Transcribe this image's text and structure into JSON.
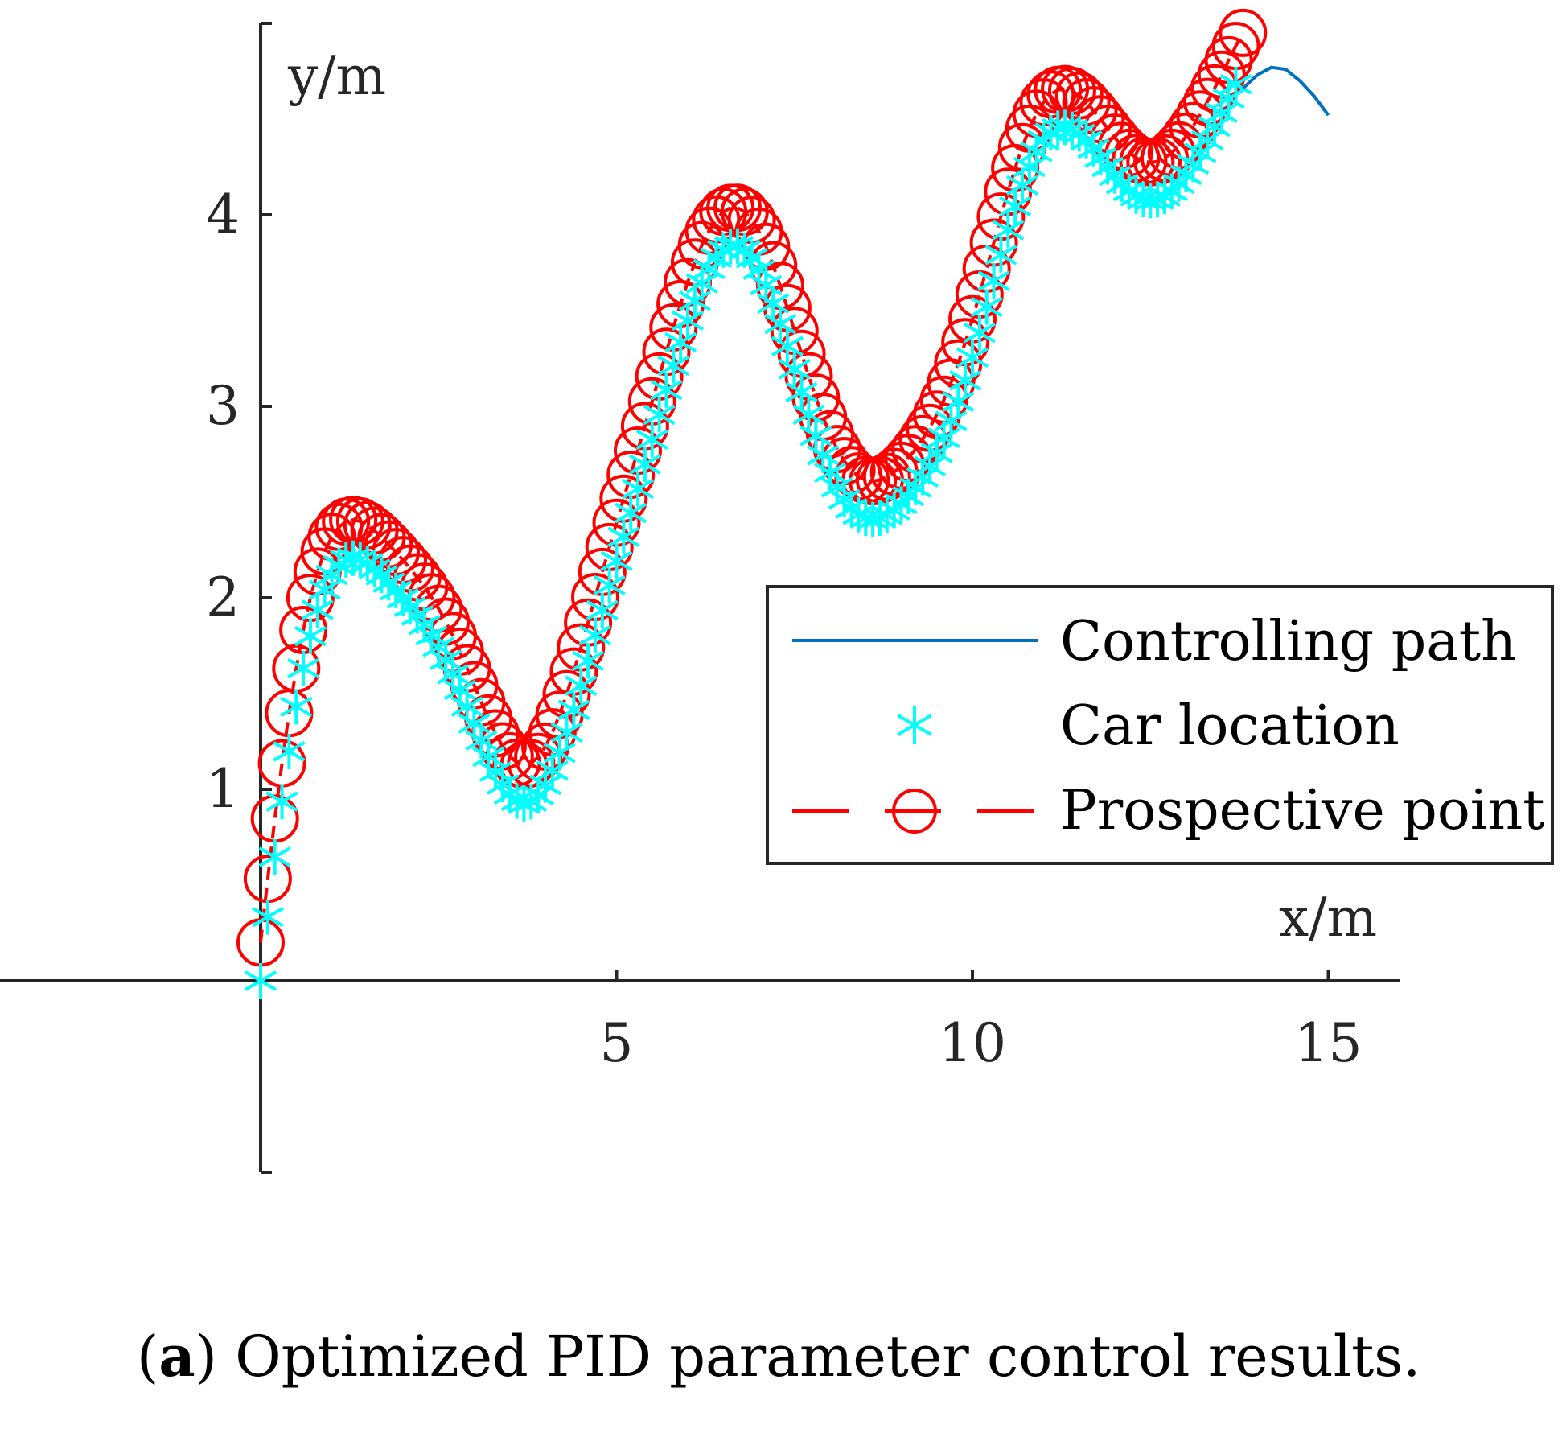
{
  "chart_data": {
    "type": "line",
    "caption_label": "a",
    "caption_text": "Optimized PID parameter control results.",
    "xlabel": "x/m",
    "ylabel": "y/m",
    "xlim": [
      -4,
      16
    ],
    "ylim": [
      -1,
      5
    ],
    "x_ticks": [
      5,
      10,
      15
    ],
    "y_ticks": [
      1,
      2,
      3,
      4
    ],
    "x_tick_labels": [
      "5",
      "10",
      "15"
    ],
    "y_tick_labels": [
      "1",
      "2",
      "3",
      "4"
    ],
    "legend_position": "center-right",
    "series": [
      {
        "name": "Controlling path",
        "style": "solid-line",
        "color": "#0072BD",
        "x": [
          13.8,
          14.0,
          14.2,
          14.4,
          14.6,
          14.8,
          15.0
        ],
        "y": [
          4.66,
          4.73,
          4.77,
          4.76,
          4.7,
          4.62,
          4.52
        ]
      },
      {
        "name": "Car location",
        "style": "asterisk-markers",
        "color": "#00FFFF",
        "x": [
          0.0,
          0.1,
          0.2,
          0.3,
          0.4,
          0.5,
          0.6,
          0.7,
          0.8,
          0.9,
          1.0,
          1.1,
          1.2,
          1.3,
          1.4,
          1.5,
          1.6,
          1.7,
          1.8,
          1.9,
          2.0,
          2.1,
          2.2,
          2.3,
          2.4,
          2.5,
          2.6,
          2.7,
          2.8,
          2.9,
          3.0,
          3.1,
          3.2,
          3.3,
          3.4,
          3.5,
          3.6,
          3.7,
          3.8,
          3.9,
          4.0,
          4.1,
          4.2,
          4.3,
          4.4,
          4.5,
          4.6,
          4.7,
          4.8,
          4.9,
          5.0,
          5.1,
          5.2,
          5.3,
          5.4,
          5.5,
          5.6,
          5.7,
          5.8,
          5.9,
          6.0,
          6.1,
          6.2,
          6.3,
          6.4,
          6.5,
          6.6,
          6.7,
          6.8,
          6.9,
          7.0,
          7.1,
          7.2,
          7.3,
          7.4,
          7.5,
          7.6,
          7.7,
          7.8,
          7.9,
          8.0,
          8.1,
          8.2,
          8.3,
          8.4,
          8.5,
          8.6,
          8.7,
          8.8,
          8.9,
          9.0,
          9.1,
          9.2,
          9.3,
          9.4,
          9.5,
          9.6,
          9.7,
          9.8,
          9.9,
          10.0,
          10.1,
          10.2,
          10.3,
          10.4,
          10.5,
          10.6,
          10.7,
          10.8,
          10.9,
          11.0,
          11.1,
          11.2,
          11.3,
          11.4,
          11.5,
          11.6,
          11.7,
          11.8,
          11.9,
          12.0,
          12.1,
          12.2,
          12.3,
          12.4,
          12.5,
          12.6,
          12.7,
          12.8,
          12.9,
          13.0,
          13.1,
          13.2,
          13.3,
          13.4,
          13.5,
          13.6,
          13.7
        ],
        "y": [
          0.0,
          0.333,
          0.647,
          0.936,
          1.198,
          1.431,
          1.632,
          1.8,
          1.937,
          2.042,
          2.119,
          2.17,
          2.198,
          2.207,
          2.199,
          2.18,
          2.151,
          2.117,
          2.079,
          2.039,
          1.997,
          1.953,
          1.907,
          1.858,
          1.803,
          1.743,
          1.676,
          1.601,
          1.519,
          1.432,
          1.344,
          1.255,
          1.17,
          1.092,
          1.025,
          0.973,
          0.939,
          0.925,
          0.936,
          0.969,
          1.023,
          1.098,
          1.19,
          1.297,
          1.415,
          1.541,
          1.671,
          1.804,
          1.935,
          2.065,
          2.192,
          2.318,
          2.443,
          2.569,
          2.697,
          2.826,
          2.956,
          3.085,
          3.212,
          3.334,
          3.448,
          3.551,
          3.642,
          3.717,
          3.776,
          3.816,
          3.836,
          3.837,
          3.816,
          3.774,
          3.713,
          3.633,
          3.537,
          3.43,
          3.314,
          3.194,
          3.074,
          2.957,
          2.846,
          2.745,
          2.654,
          2.577,
          2.514,
          2.467,
          2.434,
          2.415,
          2.409,
          2.416,
          2.432,
          2.457,
          2.49,
          2.53,
          2.576,
          2.629,
          2.688,
          2.757,
          2.835,
          2.924,
          3.024,
          3.135,
          3.255,
          3.384,
          3.519,
          3.655,
          3.791,
          3.921,
          4.044,
          4.154,
          4.25,
          4.328,
          4.388,
          4.429,
          4.452,
          4.457,
          4.447,
          4.423,
          4.388,
          4.346,
          4.299,
          4.25,
          4.203,
          4.16,
          4.124,
          4.097,
          4.08,
          4.074,
          4.079,
          4.096,
          4.124,
          4.162,
          4.209,
          4.263,
          4.324,
          4.39,
          4.46,
          4.532,
          4.607,
          4.682
        ]
      },
      {
        "name": "Prospective point",
        "style": "dashed-line-circle-markers",
        "color": "#FF0000",
        "x": [
          0.0,
          0.1,
          0.2,
          0.3,
          0.4,
          0.5,
          0.6,
          0.7,
          0.8,
          0.9,
          1.0,
          1.1,
          1.2,
          1.3,
          1.4,
          1.5,
          1.6,
          1.7,
          1.8,
          1.9,
          2.0,
          2.1,
          2.2,
          2.3,
          2.4,
          2.5,
          2.6,
          2.7,
          2.8,
          2.9,
          3.0,
          3.1,
          3.2,
          3.3,
          3.4,
          3.5,
          3.6,
          3.7,
          3.8,
          3.9,
          4.0,
          4.1,
          4.2,
          4.3,
          4.4,
          4.5,
          4.6,
          4.7,
          4.8,
          4.9,
          5.0,
          5.1,
          5.2,
          5.3,
          5.4,
          5.5,
          5.6,
          5.7,
          5.8,
          5.9,
          6.0,
          6.1,
          6.2,
          6.3,
          6.4,
          6.5,
          6.6,
          6.7,
          6.8,
          6.9,
          7.0,
          7.1,
          7.2,
          7.3,
          7.4,
          7.5,
          7.6,
          7.7,
          7.8,
          7.9,
          8.0,
          8.1,
          8.2,
          8.3,
          8.4,
          8.5,
          8.6,
          8.7,
          8.8,
          8.9,
          9.0,
          9.1,
          9.2,
          9.3,
          9.4,
          9.5,
          9.6,
          9.7,
          9.8,
          9.9,
          10.0,
          10.1,
          10.2,
          10.3,
          10.4,
          10.5,
          10.6,
          10.7,
          10.8,
          10.9,
          11.0,
          11.1,
          11.2,
          11.3,
          11.4,
          11.5,
          11.6,
          11.7,
          11.8,
          11.9,
          12.0,
          12.1,
          12.2,
          12.3,
          12.4,
          12.5,
          12.6,
          12.7,
          12.8,
          12.9,
          13.0,
          13.1,
          13.2,
          13.3,
          13.4,
          13.5,
          13.6,
          13.7,
          13.8
        ],
        "y": [
          0.2,
          0.533,
          0.847,
          1.136,
          1.398,
          1.631,
          1.832,
          2.0,
          2.137,
          2.242,
          2.319,
          2.37,
          2.398,
          2.407,
          2.399,
          2.38,
          2.351,
          2.317,
          2.279,
          2.239,
          2.197,
          2.153,
          2.107,
          2.058,
          2.003,
          1.943,
          1.876,
          1.801,
          1.719,
          1.632,
          1.544,
          1.455,
          1.37,
          1.292,
          1.225,
          1.173,
          1.139,
          1.125,
          1.136,
          1.169,
          1.223,
          1.298,
          1.39,
          1.497,
          1.615,
          1.741,
          1.871,
          2.004,
          2.135,
          2.265,
          2.392,
          2.518,
          2.643,
          2.769,
          2.897,
          3.026,
          3.156,
          3.285,
          3.412,
          3.534,
          3.648,
          3.751,
          3.842,
          3.917,
          3.976,
          4.016,
          4.036,
          4.037,
          4.016,
          3.974,
          3.913,
          3.833,
          3.737,
          3.63,
          3.514,
          3.394,
          3.274,
          3.157,
          3.046,
          2.945,
          2.854,
          2.777,
          2.714,
          2.667,
          2.634,
          2.615,
          2.609,
          2.616,
          2.632,
          2.657,
          2.69,
          2.73,
          2.776,
          2.829,
          2.888,
          2.957,
          3.035,
          3.124,
          3.224,
          3.335,
          3.455,
          3.584,
          3.719,
          3.855,
          3.991,
          4.121,
          4.244,
          4.354,
          4.45,
          4.528,
          4.588,
          4.629,
          4.652,
          4.657,
          4.647,
          4.623,
          4.588,
          4.546,
          4.499,
          4.45,
          4.403,
          4.36,
          4.324,
          4.297,
          4.28,
          4.274,
          4.279,
          4.296,
          4.324,
          4.362,
          4.409,
          4.463,
          4.524,
          4.59,
          4.66,
          4.732,
          4.807,
          4.882,
          4.95
        ]
      }
    ]
  }
}
